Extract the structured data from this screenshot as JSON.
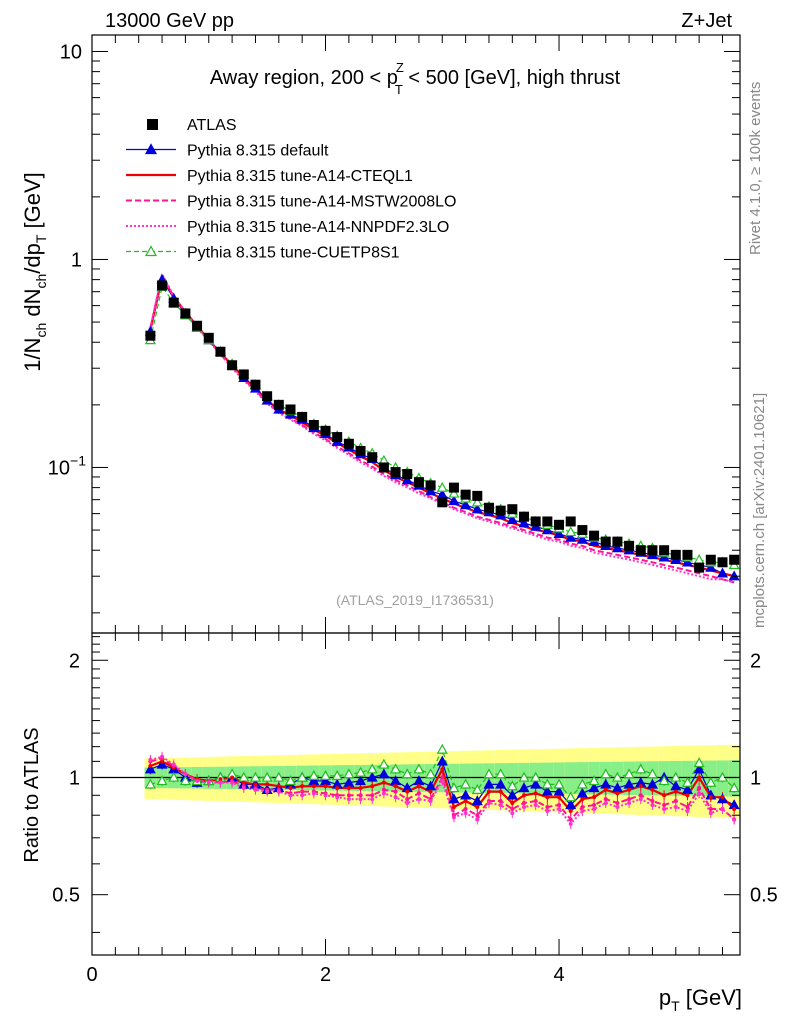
{
  "header": {
    "left": "13000 GeV pp",
    "right": "Z+Jet"
  },
  "plot_title": {
    "main": "Away region, 200 < p",
    "sup": "Z",
    "sub": "T",
    "rest": " < 500 [GeV], high thrust"
  },
  "side_text": {
    "rivet": "Rivet 4.1.0, ≥ 100k events",
    "mcplots": "mcplots.cern.ch [arXiv:2401.10621]"
  },
  "reference_label": "(ATLAS_2019_I1736531)",
  "axes": {
    "ylabel_main": "1/N_ch dN_ch/dp_T [GeV]",
    "ylabel_ratio": "Ratio to ATLAS",
    "xlabel": "p_T [GeV]",
    "main_ytick_labels": [
      "10",
      "1",
      "10−1"
    ],
    "ratio_ytick_labels": [
      "2",
      "1",
      "0.5"
    ],
    "xtick_labels": [
      "0",
      "2",
      "4"
    ]
  },
  "legend": [
    {
      "key": "atlas",
      "label": "ATLAS",
      "color": "#000000",
      "style": "square"
    },
    {
      "key": "default",
      "label": "Pythia 8.315 default",
      "color": "#0000dd",
      "style": "solid-triangle"
    },
    {
      "key": "cteql1",
      "label": "Pythia 8.315 tune-A14-CTEQL1",
      "color": "#ee0000",
      "style": "solid"
    },
    {
      "key": "mstw",
      "label": "Pythia 8.315 tune-A14-MSTW2008LO",
      "color": "#ff1493",
      "style": "dashed"
    },
    {
      "key": "nnpdf",
      "label": "Pythia 8.315 tune-A14-NNPDF2.3LO",
      "color": "#ff33cc",
      "style": "dotted"
    },
    {
      "key": "cuetp",
      "label": "Pythia 8.315 tune-CUETP8S1",
      "color": "#22bb22",
      "style": "dashed-open-triangle"
    }
  ],
  "chart_data": {
    "type": "line",
    "xlabel": "p_T [GeV]",
    "ylabel": "1/N_ch dN_ch/dp_T [GeV]",
    "xlim": [
      0,
      5.55
    ],
    "ylim": [
      0.016,
      12
    ],
    "yscale": "log",
    "ratio_ylim": [
      0.35,
      2.35
    ],
    "ratio_yscale": "log",
    "x": [
      0.5,
      0.6,
      0.7,
      0.8,
      0.9,
      1.0,
      1.1,
      1.2,
      1.3,
      1.4,
      1.5,
      1.6,
      1.7,
      1.8,
      1.9,
      2.0,
      2.1,
      2.2,
      2.3,
      2.4,
      2.5,
      2.6,
      2.7,
      2.8,
      2.9,
      3.0,
      3.1,
      3.2,
      3.3,
      3.4,
      3.5,
      3.6,
      3.7,
      3.8,
      3.9,
      4.0,
      4.1,
      4.2,
      4.3,
      4.4,
      4.5,
      4.6,
      4.7,
      4.8,
      4.9,
      5.0,
      5.1,
      5.2,
      5.3,
      5.4,
      5.5
    ],
    "series": [
      {
        "name": "ATLAS",
        "values": [
          0.43,
          0.75,
          0.62,
          0.55,
          0.48,
          0.42,
          0.36,
          0.31,
          0.28,
          0.25,
          0.22,
          0.2,
          0.19,
          0.175,
          0.16,
          0.15,
          0.14,
          0.13,
          0.12,
          0.112,
          0.1,
          0.095,
          0.093,
          0.085,
          0.082,
          0.068,
          0.08,
          0.074,
          0.073,
          0.064,
          0.062,
          0.063,
          0.058,
          0.055,
          0.055,
          0.053,
          0.055,
          0.05,
          0.047,
          0.044,
          0.044,
          0.042,
          0.04,
          0.04,
          0.04,
          0.038,
          0.038,
          0.033,
          0.036,
          0.035,
          0.036
        ]
      },
      {
        "name": "Pythia 8.315 default",
        "values": [
          0.45,
          0.8,
          0.65,
          0.55,
          0.47,
          0.41,
          0.36,
          0.31,
          0.27,
          0.24,
          0.21,
          0.19,
          0.18,
          0.17,
          0.155,
          0.145,
          0.133,
          0.125,
          0.116,
          0.11,
          0.1,
          0.092,
          0.087,
          0.082,
          0.077,
          0.074,
          0.069,
          0.066,
          0.063,
          0.061,
          0.059,
          0.056,
          0.054,
          0.052,
          0.05,
          0.048,
          0.046,
          0.045,
          0.044,
          0.042,
          0.041,
          0.04,
          0.039,
          0.038,
          0.037,
          0.036,
          0.035,
          0.034,
          0.033,
          0.031,
          0.03
        ]
      },
      {
        "name": "Pythia 8.315 tune-A14-CTEQL1",
        "values": [
          0.46,
          0.83,
          0.66,
          0.56,
          0.48,
          0.41,
          0.355,
          0.31,
          0.27,
          0.24,
          0.21,
          0.19,
          0.178,
          0.165,
          0.152,
          0.142,
          0.131,
          0.122,
          0.113,
          0.106,
          0.097,
          0.09,
          0.085,
          0.08,
          0.075,
          0.071,
          0.067,
          0.064,
          0.061,
          0.059,
          0.057,
          0.054,
          0.052,
          0.05,
          0.049,
          0.047,
          0.045,
          0.044,
          0.042,
          0.041,
          0.04,
          0.039,
          0.038,
          0.037,
          0.036,
          0.035,
          0.034,
          0.033,
          0.032,
          0.031,
          0.03
        ]
      },
      {
        "name": "Pythia 8.315 tune-A14-MSTW2008LO",
        "values": [
          0.47,
          0.84,
          0.66,
          0.56,
          0.47,
          0.41,
          0.35,
          0.305,
          0.265,
          0.235,
          0.205,
          0.185,
          0.172,
          0.16,
          0.147,
          0.137,
          0.126,
          0.117,
          0.108,
          0.101,
          0.093,
          0.087,
          0.082,
          0.077,
          0.072,
          0.068,
          0.064,
          0.061,
          0.058,
          0.056,
          0.054,
          0.052,
          0.05,
          0.048,
          0.046,
          0.045,
          0.043,
          0.042,
          0.04,
          0.039,
          0.038,
          0.037,
          0.036,
          0.035,
          0.034,
          0.033,
          0.032,
          0.031,
          0.03,
          0.029,
          0.028
        ]
      },
      {
        "name": "Pythia 8.315 tune-A14-NNPDF2.3LO",
        "values": [
          0.47,
          0.85,
          0.67,
          0.56,
          0.47,
          0.405,
          0.35,
          0.3,
          0.262,
          0.232,
          0.203,
          0.183,
          0.17,
          0.158,
          0.145,
          0.135,
          0.124,
          0.115,
          0.106,
          0.099,
          0.091,
          0.085,
          0.08,
          0.075,
          0.071,
          0.067,
          0.063,
          0.06,
          0.057,
          0.055,
          0.053,
          0.051,
          0.049,
          0.047,
          0.045,
          0.044,
          0.042,
          0.041,
          0.039,
          0.038,
          0.037,
          0.036,
          0.035,
          0.034,
          0.033,
          0.032,
          0.031,
          0.03,
          0.029,
          0.029,
          0.028
        ]
      },
      {
        "name": "Pythia 8.315 tune-CUETP8S1",
        "values": [
          0.41,
          0.74,
          0.62,
          0.54,
          0.47,
          0.41,
          0.36,
          0.315,
          0.28,
          0.25,
          0.22,
          0.2,
          0.187,
          0.175,
          0.162,
          0.152,
          0.142,
          0.133,
          0.124,
          0.117,
          0.108,
          0.1,
          0.095,
          0.089,
          0.084,
          0.08,
          0.075,
          0.071,
          0.068,
          0.065,
          0.063,
          0.06,
          0.058,
          0.055,
          0.053,
          0.051,
          0.049,
          0.048,
          0.046,
          0.045,
          0.044,
          0.043,
          0.042,
          0.041,
          0.039,
          0.038,
          0.037,
          0.036,
          0.035,
          0.035,
          0.034
        ]
      }
    ],
    "ratio_series": [
      {
        "name": "Pythia 8.315 default",
        "values": [
          1.05,
          1.08,
          1.05,
          1.0,
          0.97,
          0.98,
          1.0,
          1.0,
          0.96,
          0.96,
          0.93,
          0.94,
          0.96,
          1.0,
          0.98,
          0.98,
          0.96,
          0.97,
          0.98,
          1.0,
          1.02,
          0.98,
          0.94,
          0.98,
          0.95,
          1.1,
          0.88,
          0.9,
          0.87,
          0.96,
          0.96,
          0.9,
          0.94,
          0.96,
          0.92,
          0.92,
          0.85,
          0.91,
          0.94,
          0.96,
          0.94,
          0.96,
          0.97,
          0.96,
          1.0,
          0.95,
          0.93,
          1.05,
          0.9,
          0.88,
          0.85
        ]
      },
      {
        "name": "Pythia 8.315 tune-A14-CTEQL1",
        "values": [
          1.07,
          1.1,
          1.06,
          1.02,
          0.99,
          0.98,
          0.99,
          1.0,
          0.97,
          0.96,
          0.96,
          0.95,
          0.94,
          0.95,
          0.95,
          0.95,
          0.94,
          0.94,
          0.94,
          0.95,
          0.97,
          0.95,
          0.92,
          0.95,
          0.92,
          1.05,
          0.84,
          0.87,
          0.84,
          0.92,
          0.92,
          0.86,
          0.9,
          0.91,
          0.89,
          0.89,
          0.82,
          0.88,
          0.89,
          0.93,
          0.91,
          0.93,
          0.95,
          0.93,
          0.9,
          0.92,
          0.9,
          1.0,
          0.89,
          0.89,
          0.83
        ]
      },
      {
        "name": "Pythia 8.315 tune-A14-MSTW2008LO",
        "values": [
          1.1,
          1.12,
          1.07,
          1.02,
          0.98,
          0.98,
          0.97,
          0.98,
          0.95,
          0.94,
          0.93,
          0.93,
          0.91,
          0.92,
          0.92,
          0.91,
          0.9,
          0.9,
          0.9,
          0.9,
          0.93,
          0.92,
          0.88,
          0.91,
          0.88,
          1.0,
          0.8,
          0.83,
          0.8,
          0.87,
          0.87,
          0.83,
          0.86,
          0.87,
          0.84,
          0.85,
          0.78,
          0.84,
          0.85,
          0.88,
          0.86,
          0.88,
          0.9,
          0.87,
          0.85,
          0.87,
          0.84,
          0.94,
          0.83,
          0.83,
          0.78
        ]
      },
      {
        "name": "Pythia 8.315 tune-A14-NNPDF2.3LO",
        "values": [
          1.11,
          1.13,
          1.08,
          1.02,
          0.98,
          0.97,
          0.97,
          0.97,
          0.94,
          0.93,
          0.92,
          0.92,
          0.9,
          0.9,
          0.91,
          0.9,
          0.89,
          0.88,
          0.88,
          0.88,
          0.91,
          0.89,
          0.86,
          0.88,
          0.87,
          0.98,
          0.79,
          0.81,
          0.78,
          0.86,
          0.85,
          0.81,
          0.84,
          0.85,
          0.82,
          0.83,
          0.76,
          0.82,
          0.83,
          0.86,
          0.84,
          0.86,
          0.88,
          0.85,
          0.83,
          0.84,
          0.82,
          0.91,
          0.81,
          0.83,
          0.78
        ]
      },
      {
        "name": "Pythia 8.315 tune-CUETP8S1",
        "values": [
          0.96,
          0.98,
          1.0,
          0.98,
          0.98,
          0.98,
          1.0,
          1.02,
          1.0,
          1.0,
          1.0,
          1.0,
          0.98,
          1.0,
          1.01,
          1.01,
          1.01,
          1.02,
          1.03,
          1.05,
          1.08,
          1.05,
          1.02,
          1.05,
          1.02,
          1.18,
          0.94,
          0.96,
          0.93,
          1.02,
          1.02,
          0.95,
          1.0,
          1.0,
          0.96,
          0.96,
          0.89,
          0.96,
          0.98,
          1.02,
          1.0,
          1.02,
          1.05,
          1.02,
          0.98,
          1.0,
          0.97,
          1.09,
          0.97,
          1.0,
          0.94
        ]
      }
    ],
    "band_inner_halfwidth": 0.06,
    "band_outer_halfwidth": 0.12
  }
}
